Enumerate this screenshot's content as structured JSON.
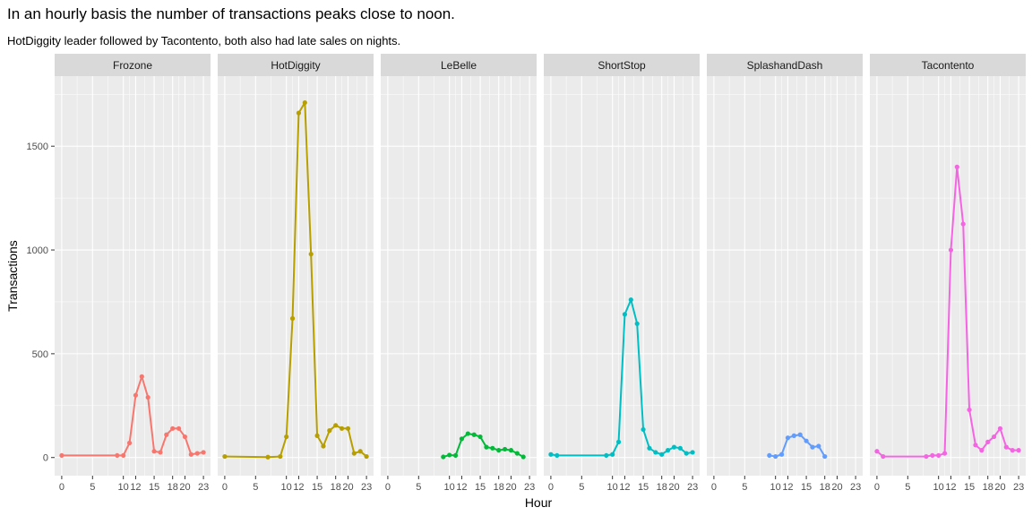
{
  "title": "In an hourly basis the number of transactions peaks close to noon.",
  "subtitle": "HotDiggity leader followed by Tacontento, both also had late sales on nights.",
  "chart_data": {
    "type": "line",
    "facet_by": "vendor",
    "xlabel": "Hour",
    "ylabel": "Transactions",
    "xlim": [
      0,
      23
    ],
    "ylim": [
      0,
      1750
    ],
    "x_ticks": [
      0,
      5,
      10,
      12,
      15,
      18,
      20,
      23
    ],
    "y_ticks": [
      0,
      500,
      1000,
      1500
    ],
    "grid": true,
    "legend": "none",
    "facets": [
      {
        "name": "Frozone",
        "color": "#F8766D",
        "x": [
          0,
          9,
          10,
          11,
          12,
          13,
          14,
          15,
          16,
          17,
          18,
          19,
          20,
          21,
          22,
          23
        ],
        "y": [
          10,
          10,
          10,
          70,
          300,
          390,
          290,
          30,
          25,
          110,
          140,
          140,
          100,
          15,
          20,
          25
        ]
      },
      {
        "name": "HotDiggity",
        "color": "#B79F00",
        "x": [
          0,
          7,
          9,
          10,
          11,
          12,
          13,
          14,
          15,
          16,
          17,
          18,
          19,
          20,
          21,
          22,
          23
        ],
        "y": [
          5,
          2,
          5,
          100,
          670,
          1660,
          1710,
          980,
          105,
          55,
          130,
          155,
          140,
          140,
          20,
          30,
          5
        ]
      },
      {
        "name": "LeBelle",
        "color": "#00BA38",
        "x": [
          9,
          10,
          11,
          12,
          13,
          14,
          15,
          16,
          17,
          18,
          19,
          20,
          21,
          22
        ],
        "y": [
          3,
          12,
          10,
          90,
          115,
          110,
          100,
          50,
          45,
          35,
          40,
          35,
          20,
          3
        ]
      },
      {
        "name": "ShortStop",
        "color": "#00BFC4",
        "x": [
          0,
          1,
          9,
          10,
          11,
          12,
          13,
          14,
          15,
          16,
          17,
          18,
          19,
          20,
          21,
          22,
          23
        ],
        "y": [
          15,
          10,
          10,
          15,
          75,
          690,
          760,
          645,
          135,
          45,
          25,
          15,
          35,
          50,
          45,
          20,
          25
        ]
      },
      {
        "name": "SplashandDash",
        "color": "#619CFF",
        "x": [
          9,
          10,
          11,
          12,
          13,
          14,
          15,
          16,
          17,
          18
        ],
        "y": [
          10,
          5,
          15,
          95,
          105,
          110,
          80,
          50,
          55,
          5
        ]
      },
      {
        "name": "Tacontento",
        "color": "#F564E3",
        "x": [
          0,
          1,
          8,
          9,
          10,
          11,
          12,
          13,
          14,
          15,
          16,
          17,
          18,
          19,
          20,
          21,
          22,
          23
        ],
        "y": [
          30,
          5,
          5,
          10,
          10,
          20,
          1000,
          1400,
          1125,
          230,
          60,
          35,
          75,
          100,
          140,
          50,
          35,
          35
        ]
      }
    ]
  }
}
